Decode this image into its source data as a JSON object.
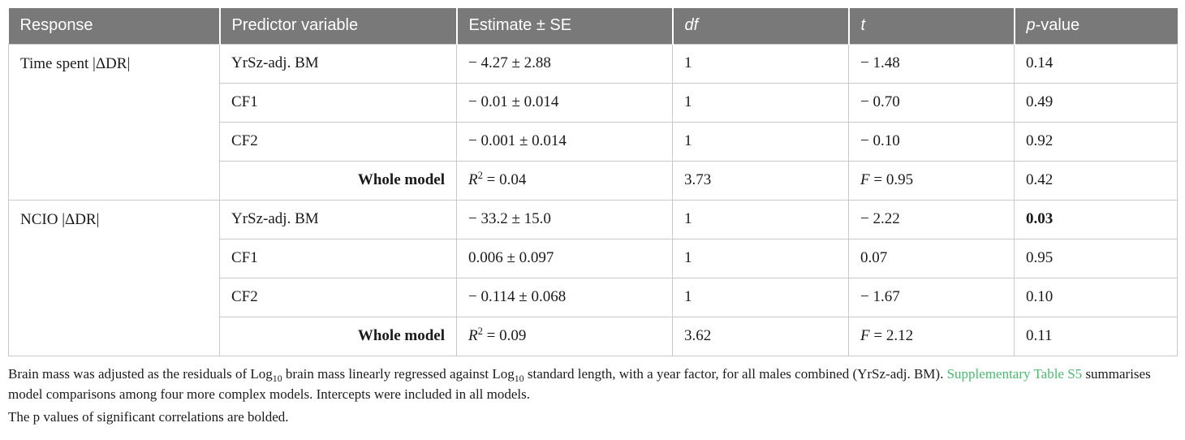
{
  "colors": {
    "header_background": "#797979",
    "header_text": "#ffffff",
    "cell_border": "#c9c9c9",
    "link_green": "#4bb86f"
  },
  "table": {
    "header": {
      "response": "Response",
      "predictor": "Predictor variable",
      "estimate": "Estimate ± SE",
      "df": "df",
      "t": "t",
      "p_italic": "p",
      "p_rest": "-value"
    },
    "groups": [
      {
        "response": "Time spent |ΔDR|",
        "rows": [
          {
            "predictor": "YrSz-adj. BM",
            "estimate": "− 4.27 ± 2.88",
            "df": "1",
            "t": "− 1.48",
            "p": "0.14",
            "p_bold": false
          },
          {
            "predictor": "CF1",
            "estimate": "− 0.01 ± 0.014",
            "df": "1",
            "t": "− 0.70",
            "p": "0.49",
            "p_bold": false
          },
          {
            "predictor": "CF2",
            "estimate": "− 0.001 ± 0.014",
            "df": "1",
            "t": "− 0.10",
            "p": "0.92",
            "p_bold": false
          }
        ],
        "whole_model": {
          "label": "Whole model",
          "r_var": "R",
          "r_sup": "2",
          "r_rest": " = 0.04",
          "df": "3.73",
          "f_var": "F",
          "f_rest": " = 0.95",
          "p": "0.42",
          "p_bold": false
        }
      },
      {
        "response": "NCIO |ΔDR|",
        "rows": [
          {
            "predictor": "YrSz-adj. BM",
            "estimate": "− 33.2 ± 15.0",
            "df": "1",
            "t": "− 2.22",
            "p": "0.03",
            "p_bold": true
          },
          {
            "predictor": "CF1",
            "estimate": "0.006 ± 0.097",
            "df": "1",
            "t": "0.07",
            "p": "0.95",
            "p_bold": false
          },
          {
            "predictor": "CF2",
            "estimate": "− 0.114 ± 0.068",
            "df": "1",
            "t": "− 1.67",
            "p": "0.10",
            "p_bold": false
          }
        ],
        "whole_model": {
          "label": "Whole model",
          "r_var": "R",
          "r_sup": "2",
          "r_rest": " = 0.09",
          "df": "3.62",
          "f_var": "F",
          "f_rest": " = 2.12",
          "p": "0.11",
          "p_bold": false
        }
      }
    ]
  },
  "footnote": {
    "para1": [
      {
        "t": "Brain mass was adjusted as the residuals of Log"
      },
      {
        "sub": "10"
      },
      {
        "t": " brain mass linearly regressed against Log"
      },
      {
        "sub": "10"
      },
      {
        "t": " standard length, with a year factor, for all males combined (YrSz-adj. BM). "
      },
      {
        "link": "Supplementary Table S5"
      },
      {
        "t": " summarises model comparisons among four more complex models. Intercepts were included in all models."
      }
    ],
    "para2": "The p values of significant correlations are bolded."
  }
}
